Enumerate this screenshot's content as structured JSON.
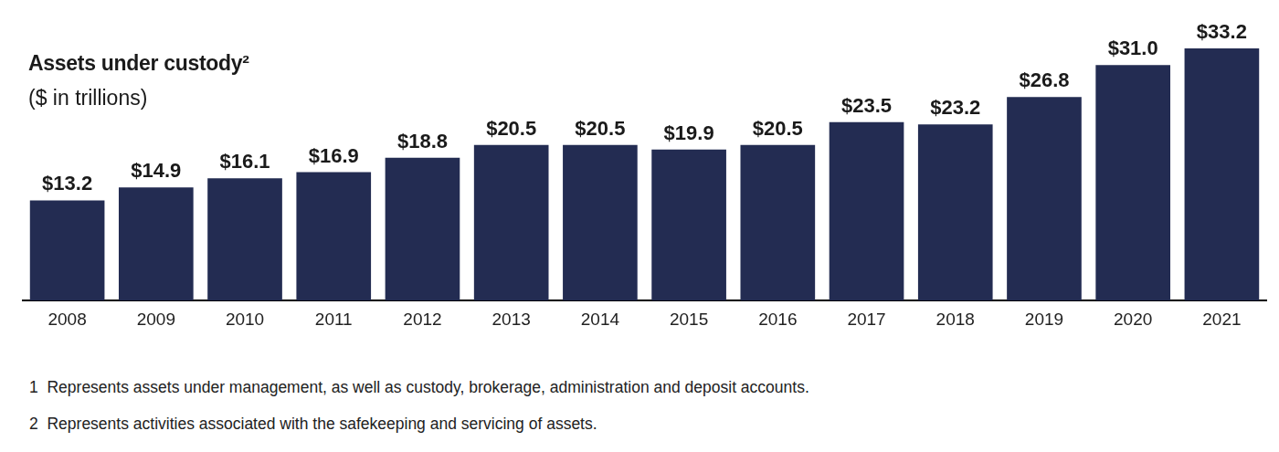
{
  "chart_data": {
    "type": "bar",
    "title": "Assets under custody²",
    "subtitle": "($ in trillions)",
    "categories": [
      "2008",
      "2009",
      "2010",
      "2011",
      "2012",
      "2013",
      "2014",
      "2015",
      "2016",
      "2017",
      "2018",
      "2019",
      "2020",
      "2021"
    ],
    "values": [
      13.2,
      14.9,
      16.1,
      16.9,
      18.8,
      20.5,
      20.5,
      19.9,
      20.5,
      23.5,
      23.2,
      26.8,
      31.0,
      33.2
    ],
    "value_labels": [
      "$13.2",
      "$14.9",
      "$16.1",
      "$16.9",
      "$18.8",
      "$20.5",
      "$20.5",
      "$19.9",
      "$20.5",
      "$23.5",
      "$23.2",
      "$26.8",
      "$31.0",
      "$33.2"
    ],
    "color": "#232c52",
    "ylim": [
      0,
      33.2
    ],
    "grid": false,
    "data_labels": true,
    "tick_labels": "x",
    "annotations": [
      "1  Represents assets under management, as well as custody, brokerage, administration and deposit accounts.",
      "2  Represents activities associated with the safekeeping and servicing of assets."
    ]
  }
}
